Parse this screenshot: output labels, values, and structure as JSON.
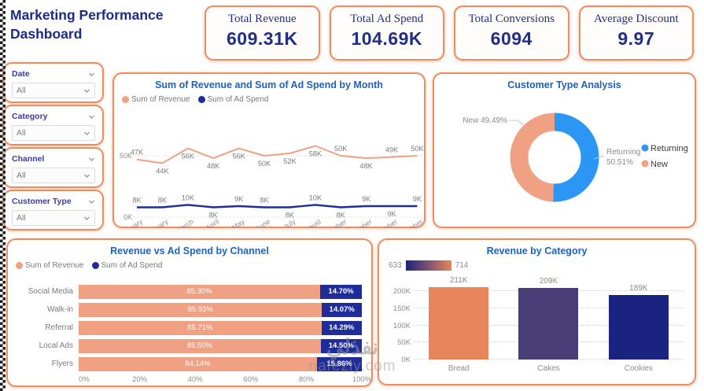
{
  "page": {
    "title": "Marketing Performance Dashboard",
    "watermark": {
      "arabic": "نفذلي",
      "domain": "nafezly.com"
    }
  },
  "kpis": [
    {
      "label": "Total Revenue",
      "value": "609.31K"
    },
    {
      "label": "Total Ad Spend",
      "value": "104.69K"
    },
    {
      "label": "Total Conversions",
      "value": "6094"
    },
    {
      "label": "Average Discount",
      "value": "9.97"
    }
  ],
  "filters": [
    {
      "label": "Date",
      "value": "All"
    },
    {
      "label": "Category",
      "value": "All"
    },
    {
      "label": "Channel",
      "value": "All"
    },
    {
      "label": "Customer Type",
      "value": "All"
    }
  ],
  "colors": {
    "accent_border": "#ee8b5f",
    "navy_text": "#1f2f86",
    "chart_title_blue": "#1d63be",
    "revenue_salmon": "#f0a183",
    "adspend_navy": "#1f2c9c",
    "donut_blue": "#2b96f4",
    "bread_orange": "#e8855a",
    "cakes_purple": "#4a3e78",
    "cookies_navy": "#1a2380"
  },
  "chart_data": [
    {
      "type": "line",
      "title": "Sum of Revenue and Sum of Ad Spend by Month",
      "categories": [
        "January",
        "February",
        "March",
        "April",
        "May",
        "June",
        "July",
        "August",
        "September",
        "October",
        "November",
        "December"
      ],
      "series": [
        {
          "name": "Sum of Revenue",
          "color": "#f0a183",
          "values_k": [
            47,
            44,
            56,
            48,
            56,
            50,
            52,
            58,
            50,
            48,
            49,
            50
          ],
          "labels": [
            "47K",
            "44K",
            "56K",
            "48K",
            "56K",
            "50K",
            "52K",
            "58K",
            "50K",
            "48K",
            "49K",
            "50K"
          ],
          "label_side": [
            "above",
            "below",
            "below",
            "below",
            "below",
            "below",
            "below",
            "below",
            "above",
            "below",
            "above",
            "above"
          ]
        },
        {
          "name": "Sum of Ad Spend",
          "color": "#1f2c9c",
          "values_k": [
            8,
            8,
            10,
            8,
            9,
            8,
            8,
            10,
            8,
            9,
            9,
            9
          ],
          "labels": [
            "8K",
            "8K",
            "10K",
            "8K",
            "9K",
            "8K",
            "8K",
            "10K",
            "8K",
            "9K",
            "9K",
            "9K"
          ],
          "label_side": [
            "above",
            "above",
            "above",
            "below",
            "above",
            "above",
            "below",
            "above",
            "below",
            "above",
            "below",
            "above"
          ]
        }
      ],
      "y_ticks": [
        {
          "label": "0K",
          "value_k": 0
        },
        {
          "label": "50K",
          "value_k": 50
        }
      ],
      "ylim_k": [
        0,
        62
      ],
      "grid": "dotted",
      "legend_position": "top-left"
    },
    {
      "type": "donut",
      "title": "Customer Type Analysis",
      "slices": [
        {
          "name": "Returning",
          "pct": 50.51,
          "color": "#2b96f4",
          "callout": [
            "Returning",
            "50.51%"
          ]
        },
        {
          "name": "New",
          "pct": 49.49,
          "color": "#f0a183",
          "callout": [
            "New 49.49%"
          ]
        }
      ],
      "legend_position": "right"
    },
    {
      "type": "stacked-bar-100",
      "title": "Revenue vs Ad Spend by Channel",
      "categories": [
        "Social Media",
        "Walk-in",
        "Referral",
        "Local Ads",
        "Flyers"
      ],
      "series": [
        {
          "name": "Sum of Revenue",
          "color": "#f0a183",
          "values_pct": [
            85.3,
            85.93,
            85.71,
            85.5,
            84.14
          ],
          "labels": [
            "85.30%",
            "85.93%",
            "85.71%",
            "85.50%",
            "84.14%"
          ]
        },
        {
          "name": "Sum of Ad Spend",
          "color": "#1f2c9c",
          "values_pct": [
            14.7,
            14.07,
            14.29,
            14.5,
            15.86
          ],
          "labels": [
            "14.70%",
            "14.07%",
            "14.29%",
            "14.50%",
            "15.86%"
          ]
        }
      ],
      "x_ticks": [
        "0%",
        "20%",
        "40%",
        "60%",
        "80%",
        "100%"
      ],
      "legend_position": "top-left"
    },
    {
      "type": "bar",
      "title": "Revenue by Category",
      "categories": [
        "Bread",
        "Cakes",
        "Cookies"
      ],
      "values_k": [
        211,
        209,
        189
      ],
      "labels": [
        "211K",
        "209K",
        "189K"
      ],
      "bar_colors": [
        "#e8855a",
        "#4a3e78",
        "#1a2380"
      ],
      "gradient_legend": {
        "min": "633",
        "max": "714",
        "from": "#1a2380",
        "to": "#e8855a"
      },
      "y_ticks": [
        {
          "label": "0K",
          "value_k": 0
        },
        {
          "label": "50K",
          "value_k": 50
        },
        {
          "label": "100K",
          "value_k": 100
        },
        {
          "label": "150K",
          "value_k": 150
        },
        {
          "label": "200K",
          "value_k": 200
        }
      ],
      "ylim_k": [
        0,
        230
      ],
      "grid": "dotted"
    }
  ]
}
